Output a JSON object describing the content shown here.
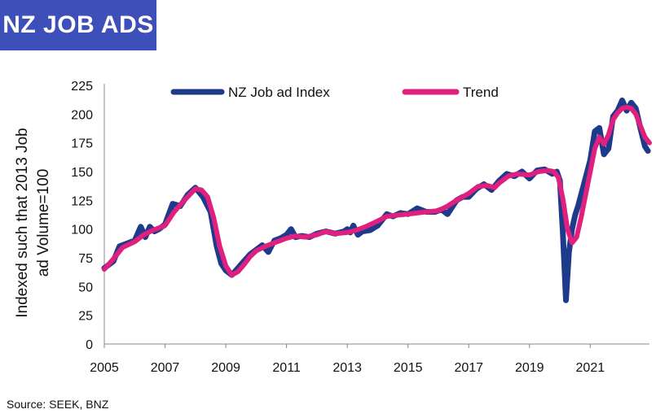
{
  "header": {
    "title": "NZ JOB ADS"
  },
  "source": "Source: SEEK, BNZ",
  "chart_data": {
    "type": "line",
    "title": "NZ JOB ADS",
    "ylabel_lines": [
      "Indexed such that 2013 Job",
      "ad Volume=100"
    ],
    "xlabel": "",
    "ylim": [
      0,
      225
    ],
    "xlim": [
      2005,
      2022.95
    ],
    "yticks": [
      0,
      25,
      50,
      75,
      100,
      125,
      150,
      175,
      200,
      225
    ],
    "xticks": [
      2005,
      2007,
      2009,
      2011,
      2013,
      2015,
      2017,
      2019,
      2021
    ],
    "legend_placement": "top",
    "grid": false,
    "series": [
      {
        "name": "NZ Job ad Index",
        "color": "#1e3a8a",
        "x": [
          2005.0,
          2005.3,
          2005.5,
          2005.8,
          2006.0,
          2006.2,
          2006.35,
          2006.5,
          2006.65,
          2006.8,
          2007.0,
          2007.25,
          2007.5,
          2007.75,
          2008.0,
          2008.25,
          2008.5,
          2008.7,
          2008.85,
          2009.0,
          2009.2,
          2009.4,
          2009.6,
          2009.8,
          2010.0,
          2010.2,
          2010.4,
          2010.6,
          2010.8,
          2011.0,
          2011.15,
          2011.3,
          2011.5,
          2011.75,
          2012.0,
          2012.3,
          2012.6,
          2012.9,
          2013.0,
          2013.1,
          2013.2,
          2013.35,
          2013.5,
          2013.75,
          2014.0,
          2014.15,
          2014.3,
          2014.5,
          2014.75,
          2015.0,
          2015.3,
          2015.6,
          2015.9,
          2016.1,
          2016.3,
          2016.6,
          2016.8,
          2017.0,
          2017.25,
          2017.5,
          2017.75,
          2018.0,
          2018.25,
          2018.5,
          2018.75,
          2019.0,
          2019.25,
          2019.5,
          2019.75,
          2019.9,
          2020.0,
          2020.1,
          2020.2,
          2020.3,
          2020.4,
          2020.5,
          2020.6,
          2020.8,
          2021.0,
          2021.15,
          2021.3,
          2021.45,
          2021.6,
          2021.75,
          2021.9,
          2022.05,
          2022.2,
          2022.35,
          2022.5,
          2022.65,
          2022.8,
          2022.9
        ],
        "values": [
          66,
          72,
          85,
          88,
          90,
          102,
          93,
          102,
          98,
          100,
          104,
          122,
          120,
          130,
          136,
          128,
          115,
          85,
          70,
          64,
          60,
          66,
          72,
          78,
          82,
          86,
          80,
          90,
          92,
          95,
          100,
          93,
          94,
          93,
          96,
          98,
          96,
          98,
          100,
          97,
          103,
          95,
          98,
          99,
          103,
          108,
          113,
          111,
          114,
          113,
          118,
          115,
          115,
          117,
          113,
          125,
          128,
          128,
          135,
          139,
          134,
          142,
          148,
          146,
          150,
          144,
          151,
          152,
          148,
          150,
          142,
          95,
          38,
          80,
          100,
          112,
          120,
          140,
          160,
          185,
          188,
          165,
          170,
          198,
          203,
          212,
          203,
          210,
          205,
          188,
          172,
          168
        ]
      },
      {
        "name": "Trend",
        "color": "#e0207f",
        "x": [
          2005.0,
          2005.3,
          2005.6,
          2006.0,
          2006.3,
          2006.6,
          2007.0,
          2007.3,
          2007.6,
          2007.85,
          2008.0,
          2008.2,
          2008.4,
          2008.6,
          2008.8,
          2009.0,
          2009.2,
          2009.4,
          2009.6,
          2009.8,
          2010.0,
          2010.3,
          2010.6,
          2011.0,
          2011.3,
          2011.6,
          2012.0,
          2012.3,
          2012.6,
          2013.0,
          2013.3,
          2013.6,
          2014.0,
          2014.3,
          2014.6,
          2015.0,
          2015.3,
          2015.6,
          2016.0,
          2016.3,
          2016.6,
          2017.0,
          2017.3,
          2017.6,
          2017.85,
          2018.0,
          2018.3,
          2018.6,
          2019.0,
          2019.3,
          2019.6,
          2019.8,
          2019.95,
          2020.1,
          2020.25,
          2020.4,
          2020.55,
          2020.7,
          2020.85,
          2021.0,
          2021.15,
          2021.3,
          2021.45,
          2021.6,
          2021.75,
          2021.9,
          2022.05,
          2022.2,
          2022.35,
          2022.5,
          2022.65,
          2022.8,
          2022.95
        ],
        "values": [
          65,
          74,
          84,
          89,
          95,
          99,
          103,
          115,
          124,
          131,
          135,
          134,
          128,
          110,
          85,
          68,
          60,
          63,
          69,
          76,
          81,
          85,
          88,
          92,
          94,
          93,
          95,
          98,
          96,
          97,
          99,
          102,
          107,
          111,
          112,
          113,
          114,
          115,
          116,
          120,
          125,
          131,
          137,
          138,
          136,
          140,
          146,
          148,
          147,
          150,
          151,
          150,
          145,
          126,
          100,
          88,
          93,
          110,
          130,
          150,
          170,
          180,
          174,
          182,
          195,
          201,
          205,
          206,
          205,
          200,
          190,
          180,
          175
        ]
      }
    ]
  }
}
